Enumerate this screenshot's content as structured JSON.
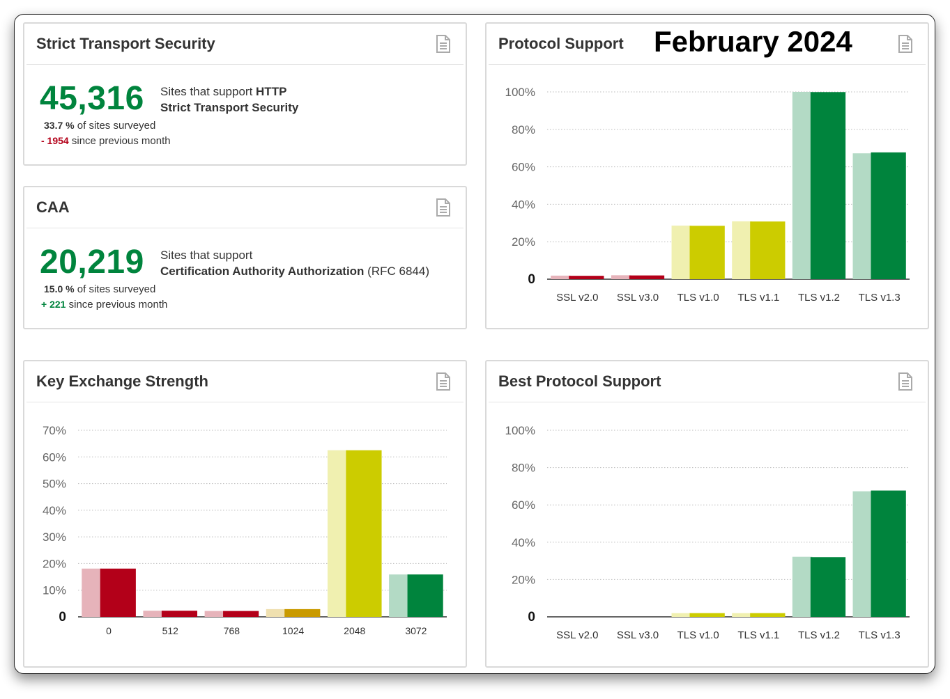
{
  "month_title": "February 2024",
  "hsts": {
    "title": "Strict Transport Security",
    "count": "45,316",
    "line1_prefix": "Sites that support ",
    "line1_bold": "HTTP",
    "line2_bold": "Strict Transport Security",
    "percent": "33.7 %",
    "percent_suffix": " of sites surveyed",
    "delta": "- 1954",
    "delta_suffix": " since previous month"
  },
  "caa": {
    "title": "CAA",
    "count": "20,219",
    "line1": "Sites that support",
    "line2_bold": "Certification Authority Authorization",
    "line2_rest": " (RFC 6844)",
    "percent": "15.0 %",
    "percent_suffix": " of sites surveyed",
    "delta": "+ 221",
    "delta_suffix": " since previous month"
  },
  "colors": {
    "red": "#b30019",
    "red_light": "#e6b3ba",
    "orange": "#c99a00",
    "orange_light": "#efe0b0",
    "yellow": "#cccc00",
    "yellow_light": "#f0f0b0",
    "green": "#00843d",
    "green_light": "#b3dac5",
    "grid": "#bbbbbb",
    "axis": "#333333"
  },
  "chart_data": [
    {
      "id": "protocol",
      "type": "bar",
      "title": "Protocol Support",
      "categories": [
        "SSL v2.0",
        "SSL v3.0",
        "TLS v1.0",
        "TLS v1.1",
        "TLS v1.2",
        "TLS v1.3"
      ],
      "series": [
        {
          "values": [
            1.9,
            2.1,
            28.6,
            30.9,
            100,
            67.2
          ]
        },
        {
          "values": [
            1.8,
            2.0,
            28.5,
            30.8,
            99.9,
            67.7
          ]
        }
      ],
      "bar_colors": [
        "red",
        "red",
        "yellow",
        "yellow",
        "green",
        "green"
      ],
      "yticks": [
        "0",
        "20%",
        "40%",
        "60%",
        "80%",
        "100%"
      ],
      "ylim": [
        0,
        100
      ]
    },
    {
      "id": "keyx",
      "type": "bar",
      "title": "Key Exchange Strength",
      "categories": [
        "0",
        "512",
        "768",
        "1024",
        "2048",
        "3072"
      ],
      "series": [
        {
          "values": [
            18.1,
            2.3,
            2.2,
            2.9,
            62.5,
            15.9
          ]
        },
        {
          "values": [
            18.1,
            2.3,
            2.2,
            2.9,
            62.5,
            15.9
          ]
        }
      ],
      "bar_colors": [
        "red",
        "red",
        "red",
        "orange",
        "yellow",
        "green"
      ],
      "yticks": [
        "0",
        "10%",
        "20%",
        "30%",
        "40%",
        "50%",
        "60%",
        "70%"
      ],
      "ylim": [
        0,
        70
      ]
    },
    {
      "id": "best",
      "type": "bar",
      "title": "Best Protocol Support",
      "categories": [
        "SSL v2.0",
        "SSL v3.0",
        "TLS v1.0",
        "TLS v1.1",
        "TLS v1.2",
        "TLS v1.3"
      ],
      "series": [
        {
          "values": [
            0,
            0,
            2.0,
            2.0,
            32.2,
            67.3
          ]
        },
        {
          "values": [
            0,
            0,
            2.0,
            2.0,
            32.0,
            67.7
          ]
        }
      ],
      "bar_colors": [
        "red",
        "red",
        "yellow",
        "yellow",
        "green",
        "green"
      ],
      "yticks": [
        "0",
        "20%",
        "40%",
        "60%",
        "80%",
        "100%"
      ],
      "ylim": [
        0,
        100
      ]
    }
  ]
}
